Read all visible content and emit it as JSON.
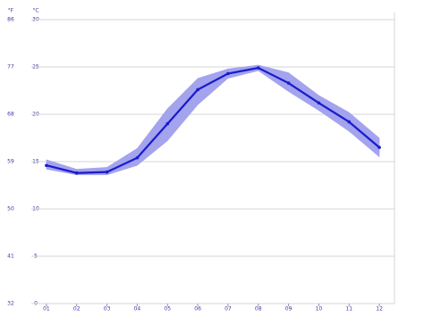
{
  "chart_data": {
    "type": "line",
    "y2_label": "°F",
    "y_label": "°C",
    "categories": [
      "01",
      "02",
      "03",
      "04",
      "05",
      "06",
      "07",
      "08",
      "09",
      "10",
      "11",
      "12"
    ],
    "series": [
      {
        "color": "#1a1acc",
        "values": [
          14.6,
          13.8,
          13.9,
          15.4,
          19.0,
          22.6,
          24.3,
          24.9,
          23.3,
          21.2,
          19.2,
          16.5
        ]
      }
    ],
    "band": {
      "color": "#a3a3ee",
      "low": [
        14.2,
        13.6,
        13.6,
        14.6,
        17.2,
        21.0,
        23.8,
        24.6,
        22.4,
        20.4,
        18.2,
        15.5
      ],
      "high": [
        15.2,
        14.2,
        14.4,
        16.4,
        20.6,
        23.8,
        24.8,
        25.2,
        24.4,
        22.0,
        20.2,
        17.5
      ]
    },
    "ylim": [
      0,
      30
    ],
    "yticks": [
      0,
      5,
      10,
      15,
      20,
      25,
      30
    ],
    "y2lim": [
      32,
      86
    ],
    "y2ticks": [
      32,
      41,
      50,
      59,
      68,
      77,
      86
    ],
    "grid": true
  }
}
